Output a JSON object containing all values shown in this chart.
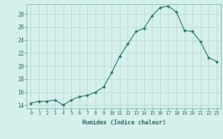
{
  "x": [
    0,
    1,
    2,
    3,
    4,
    5,
    6,
    7,
    8,
    9,
    10,
    11,
    12,
    13,
    14,
    15,
    16,
    17,
    18,
    19,
    20,
    21,
    22,
    23
  ],
  "y": [
    14.3,
    14.6,
    14.6,
    14.8,
    14.0,
    14.8,
    15.3,
    15.5,
    16.0,
    16.8,
    19.0,
    21.5,
    23.4,
    25.3,
    25.8,
    27.7,
    29.0,
    29.2,
    28.3,
    25.5,
    25.3,
    23.7,
    21.3,
    20.7
  ],
  "line_color": "#2d7a6e",
  "marker": "D",
  "marker_size": 2,
  "bg_color": "#d5f0ec",
  "grid_color": "#bcd8d3",
  "xlabel": "Humidex (Indice chaleur)",
  "xlim": [
    -0.5,
    23.5
  ],
  "ylim": [
    13.5,
    29.5
  ],
  "yticks": [
    14,
    16,
    18,
    20,
    22,
    24,
    26,
    28
  ],
  "xticks": [
    0,
    1,
    2,
    3,
    4,
    5,
    6,
    7,
    8,
    9,
    10,
    11,
    12,
    13,
    14,
    15,
    16,
    17,
    18,
    19,
    20,
    21,
    22,
    23
  ],
  "font_color": "#2d6a60",
  "axis_color": "#7ab5aa"
}
